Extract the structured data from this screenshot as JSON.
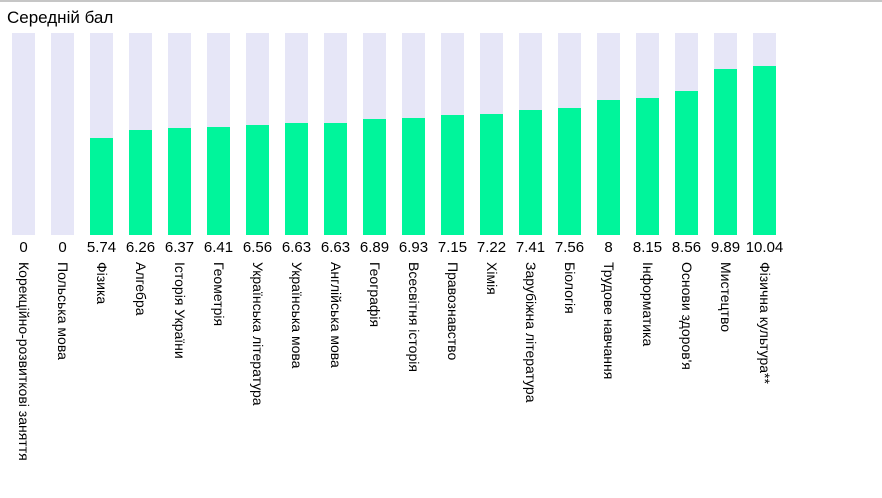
{
  "chart_data": {
    "type": "bar",
    "title": "Середній бал",
    "xlabel": "",
    "ylabel": "",
    "ylim": [
      0,
      12
    ],
    "grid": false,
    "legend": false,
    "categories": [
      "Корекційно-розвиткові заняття",
      "Польська мова",
      "Фізика",
      "Алгебра",
      "Історія України",
      "Геометрія",
      "Українська література",
      "Українська мова",
      "Англійська мова",
      "Географія",
      "Всесвітня історія",
      "Правознавство",
      "Хімія",
      "Зарубіжна література",
      "Біологія",
      "Трудове навчання",
      "Інформатика",
      "Основи здоров'я",
      "Мистецтво",
      "Фізична культура**"
    ],
    "values": [
      0,
      0,
      5.74,
      6.26,
      6.37,
      6.41,
      6.56,
      6.63,
      6.63,
      6.89,
      6.93,
      7.15,
      7.22,
      7.41,
      7.56,
      8,
      8.15,
      8.56,
      9.89,
      10.04
    ],
    "value_labels": [
      "0",
      "0",
      "5.74",
      "6.26",
      "6.37",
      "6.41",
      "6.56",
      "6.63",
      "6.63",
      "6.89",
      "6.93",
      "7.15",
      "7.22",
      "7.41",
      "7.56",
      "8",
      "8.15",
      "8.56",
      "9.89",
      "10.04"
    ],
    "colors": {
      "bar_fill": "#00F59B",
      "bar_track": "#E6E6F7",
      "title_text": "#000000",
      "top_border": "#C6C6C6"
    }
  }
}
